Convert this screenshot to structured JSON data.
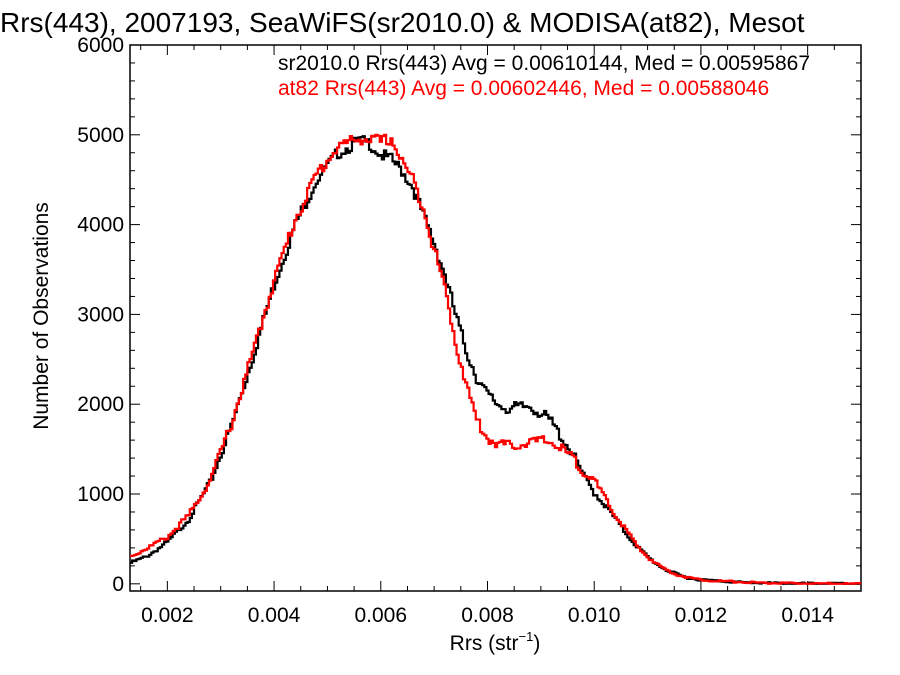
{
  "chart_data": {
    "type": "line",
    "title": "Rrs(443), 2007193, SeaWiFS(sr2010.0) & MODISA(at82), Mesot",
    "xlabel_main": "Rrs (str",
    "xlabel_sup": "−1",
    "xlabel_end": ")",
    "ylabel": "Number of Observations",
    "xlim": [
      0.0013,
      0.015
    ],
    "ylim": [
      -80,
      6000
    ],
    "x_ticks": [
      0.002,
      0.004,
      0.006,
      0.008,
      0.01,
      0.012,
      0.014
    ],
    "x_tick_labels": [
      "0.002",
      "0.004",
      "0.006",
      "0.008",
      "0.010",
      "0.012",
      "0.014"
    ],
    "y_ticks": [
      0,
      1000,
      2000,
      3000,
      4000,
      5000,
      6000
    ],
    "y_tick_labels": [
      "0",
      "1000",
      "2000",
      "3000",
      "4000",
      "5000",
      "6000"
    ],
    "grid": false,
    "legend_position": "top-right",
    "series": [
      {
        "label": "sr2010.0 Rrs(443) Avg = 0.00610144, Med = 0.00595867",
        "color": "#000000",
        "points": [
          [
            0.0013,
            230
          ],
          [
            0.0016,
            300
          ],
          [
            0.002,
            460
          ],
          [
            0.0024,
            720
          ],
          [
            0.0028,
            1120
          ],
          [
            0.0032,
            1750
          ],
          [
            0.0036,
            2520
          ],
          [
            0.004,
            3330
          ],
          [
            0.0044,
            4000
          ],
          [
            0.0048,
            4500
          ],
          [
            0.0052,
            4800
          ],
          [
            0.0056,
            4930
          ],
          [
            0.0058,
            4900
          ],
          [
            0.006,
            4780
          ],
          [
            0.0062,
            4720
          ],
          [
            0.0064,
            4600
          ],
          [
            0.0066,
            4420
          ],
          [
            0.0068,
            4100
          ],
          [
            0.007,
            3800
          ],
          [
            0.0072,
            3450
          ],
          [
            0.0074,
            3000
          ],
          [
            0.0076,
            2600
          ],
          [
            0.0078,
            2300
          ],
          [
            0.008,
            2100
          ],
          [
            0.0082,
            2000
          ],
          [
            0.0084,
            1950
          ],
          [
            0.0086,
            1960
          ],
          [
            0.0088,
            1980
          ],
          [
            0.009,
            1900
          ],
          [
            0.0092,
            1800
          ],
          [
            0.0094,
            1620
          ],
          [
            0.0096,
            1450
          ],
          [
            0.0098,
            1200
          ],
          [
            0.01,
            1020
          ],
          [
            0.0102,
            880
          ],
          [
            0.0104,
            720
          ],
          [
            0.0106,
            560
          ],
          [
            0.0108,
            420
          ],
          [
            0.011,
            300
          ],
          [
            0.0112,
            210
          ],
          [
            0.0114,
            140
          ],
          [
            0.0116,
            95
          ],
          [
            0.0118,
            60
          ],
          [
            0.012,
            45
          ],
          [
            0.0124,
            30
          ],
          [
            0.0128,
            15
          ],
          [
            0.0132,
            10
          ],
          [
            0.0136,
            5
          ],
          [
            0.014,
            3
          ],
          [
            0.0145,
            2
          ],
          [
            0.015,
            0
          ]
        ]
      },
      {
        "label": "at82 Rrs(443) Avg = 0.00602446, Med = 0.00588046",
        "color": "#ff0000",
        "points": [
          [
            0.0013,
            300
          ],
          [
            0.0016,
            390
          ],
          [
            0.002,
            520
          ],
          [
            0.0024,
            760
          ],
          [
            0.0028,
            1150
          ],
          [
            0.0032,
            1780
          ],
          [
            0.0036,
            2560
          ],
          [
            0.004,
            3380
          ],
          [
            0.0044,
            4060
          ],
          [
            0.0048,
            4560
          ],
          [
            0.0052,
            4870
          ],
          [
            0.0056,
            4960
          ],
          [
            0.0058,
            4950
          ],
          [
            0.006,
            4920
          ],
          [
            0.0062,
            4960
          ],
          [
            0.0064,
            4700
          ],
          [
            0.0066,
            4500
          ],
          [
            0.0068,
            4200
          ],
          [
            0.007,
            3720
          ],
          [
            0.0072,
            3300
          ],
          [
            0.0074,
            2700
          ],
          [
            0.0076,
            2230
          ],
          [
            0.0078,
            1820
          ],
          [
            0.008,
            1620
          ],
          [
            0.0082,
            1560
          ],
          [
            0.0084,
            1540
          ],
          [
            0.0086,
            1550
          ],
          [
            0.0088,
            1580
          ],
          [
            0.009,
            1590
          ],
          [
            0.0092,
            1580
          ],
          [
            0.0094,
            1500
          ],
          [
            0.0096,
            1400
          ],
          [
            0.0098,
            1250
          ],
          [
            0.01,
            1150
          ],
          [
            0.0102,
            950
          ],
          [
            0.0104,
            760
          ],
          [
            0.0106,
            600
          ],
          [
            0.0108,
            420
          ],
          [
            0.011,
            300
          ],
          [
            0.0112,
            210
          ],
          [
            0.0114,
            140
          ],
          [
            0.0116,
            95
          ],
          [
            0.0118,
            65
          ],
          [
            0.012,
            45
          ],
          [
            0.0124,
            30
          ],
          [
            0.0128,
            18
          ],
          [
            0.0132,
            10
          ],
          [
            0.0136,
            6
          ],
          [
            0.014,
            3
          ],
          [
            0.0145,
            2
          ],
          [
            0.015,
            0
          ]
        ]
      }
    ]
  }
}
